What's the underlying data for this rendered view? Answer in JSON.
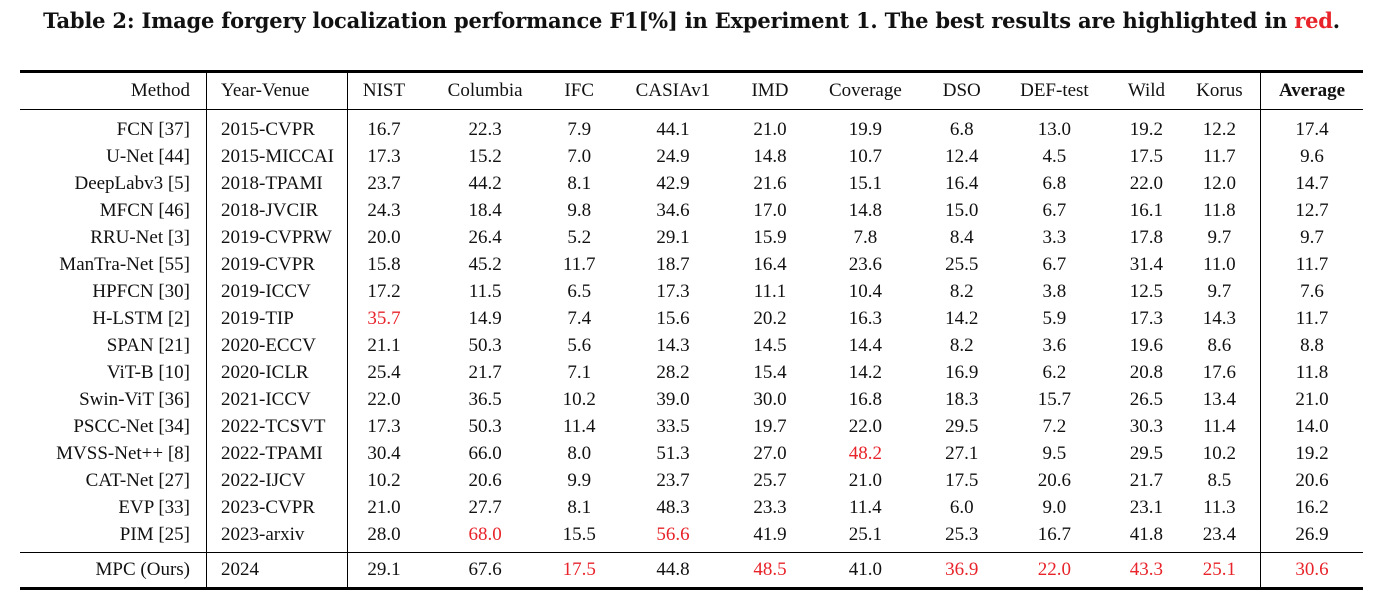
{
  "caption": {
    "prefix": "Table 2: Image forgery localization performance F1[%] in Experiment 1. The best results are highlighted in ",
    "highlight": "red",
    "suffix": "."
  },
  "colors": {
    "highlight": "#e8232a"
  },
  "headers": [
    "Method",
    "Year-Venue",
    "NIST",
    "Columbia",
    "IFC",
    "CASIAv1",
    "IMD",
    "Coverage",
    "DSO",
    "DEF-test",
    "Wild",
    "Korus",
    "Average"
  ],
  "rows": [
    {
      "method": "FCN [37]",
      "year": "2015-CVPR",
      "values": [
        "16.7",
        "22.3",
        "7.9",
        "44.1",
        "21.0",
        "19.9",
        "6.8",
        "13.0",
        "19.2",
        "12.2"
      ],
      "average": "17.4",
      "best": []
    },
    {
      "method": "U-Net [44]",
      "year": "2015-MICCAI",
      "values": [
        "17.3",
        "15.2",
        "7.0",
        "24.9",
        "14.8",
        "10.7",
        "12.4",
        "4.5",
        "17.5",
        "11.7"
      ],
      "average": "9.6",
      "best": []
    },
    {
      "method": "DeepLabv3 [5]",
      "year": "2018-TPAMI",
      "values": [
        "23.7",
        "44.2",
        "8.1",
        "42.9",
        "21.6",
        "15.1",
        "16.4",
        "6.8",
        "22.0",
        "12.0"
      ],
      "average": "14.7",
      "best": []
    },
    {
      "method": "MFCN [46]",
      "year": "2018-JVCIR",
      "values": [
        "24.3",
        "18.4",
        "9.8",
        "34.6",
        "17.0",
        "14.8",
        "15.0",
        "6.7",
        "16.1",
        "11.8"
      ],
      "average": "12.7",
      "best": []
    },
    {
      "method": "RRU-Net [3]",
      "year": "2019-CVPRW",
      "values": [
        "20.0",
        "26.4",
        "5.2",
        "29.1",
        "15.9",
        "7.8",
        "8.4",
        "3.3",
        "17.8",
        "9.7"
      ],
      "average": "9.7",
      "best": []
    },
    {
      "method": "ManTra-Net [55]",
      "year": "2019-CVPR",
      "values": [
        "15.8",
        "45.2",
        "11.7",
        "18.7",
        "16.4",
        "23.6",
        "25.5",
        "6.7",
        "31.4",
        "11.0"
      ],
      "average": "11.7",
      "best": []
    },
    {
      "method": "HPFCN [30]",
      "year": "2019-ICCV",
      "values": [
        "17.2",
        "11.5",
        "6.5",
        "17.3",
        "11.1",
        "10.4",
        "8.2",
        "3.8",
        "12.5",
        "9.7"
      ],
      "average": "7.6",
      "best": []
    },
    {
      "method": "H-LSTM [2]",
      "year": "2019-TIP",
      "values": [
        "35.7",
        "14.9",
        "7.4",
        "15.6",
        "20.2",
        "16.3",
        "14.2",
        "5.9",
        "17.3",
        "14.3"
      ],
      "average": "11.7",
      "best": [
        0
      ]
    },
    {
      "method": "SPAN [21]",
      "year": "2020-ECCV",
      "values": [
        "21.1",
        "50.3",
        "5.6",
        "14.3",
        "14.5",
        "14.4",
        "8.2",
        "3.6",
        "19.6",
        "8.6"
      ],
      "average": "8.8",
      "best": []
    },
    {
      "method": "ViT-B [10]",
      "year": "2020-ICLR",
      "values": [
        "25.4",
        "21.7",
        "7.1",
        "28.2",
        "15.4",
        "14.2",
        "16.9",
        "6.2",
        "20.8",
        "17.6"
      ],
      "average": "11.8",
      "best": []
    },
    {
      "method": "Swin-ViT [36]",
      "year": "2021-ICCV",
      "values": [
        "22.0",
        "36.5",
        "10.2",
        "39.0",
        "30.0",
        "16.8",
        "18.3",
        "15.7",
        "26.5",
        "13.4"
      ],
      "average": "21.0",
      "best": []
    },
    {
      "method": "PSCC-Net [34]",
      "year": "2022-TCSVT",
      "values": [
        "17.3",
        "50.3",
        "11.4",
        "33.5",
        "19.7",
        "22.0",
        "29.5",
        "7.2",
        "30.3",
        "11.4"
      ],
      "average": "14.0",
      "best": []
    },
    {
      "method": "MVSS-Net++ [8]",
      "year": "2022-TPAMI",
      "values": [
        "30.4",
        "66.0",
        "8.0",
        "51.3",
        "27.0",
        "48.2",
        "27.1",
        "9.5",
        "29.5",
        "10.2"
      ],
      "average": "19.2",
      "best": [
        5
      ]
    },
    {
      "method": "CAT-Net [27]",
      "year": "2022-IJCV",
      "values": [
        "10.2",
        "20.6",
        "9.9",
        "23.7",
        "25.7",
        "21.0",
        "17.5",
        "20.6",
        "21.7",
        "8.5"
      ],
      "average": "20.6",
      "best": []
    },
    {
      "method": "EVP [33]",
      "year": "2023-CVPR",
      "values": [
        "21.0",
        "27.7",
        "8.1",
        "48.3",
        "23.3",
        "11.4",
        "6.0",
        "9.0",
        "23.1",
        "11.3"
      ],
      "average": "16.2",
      "best": []
    },
    {
      "method": "PIM [25]",
      "year": "2023-arxiv",
      "values": [
        "28.0",
        "68.0",
        "15.5",
        "56.6",
        "41.9",
        "25.1",
        "25.3",
        "16.7",
        "41.8",
        "23.4"
      ],
      "average": "26.9",
      "best": [
        1,
        3
      ]
    }
  ],
  "ours": {
    "method": "MPC (Ours)",
    "year": "2024",
    "values": [
      "29.1",
      "67.6",
      "17.5",
      "44.8",
      "48.5",
      "41.0",
      "36.9",
      "22.0",
      "43.3",
      "25.1"
    ],
    "average": "30.6",
    "best": [
      2,
      4,
      6,
      7,
      8,
      9,
      10
    ]
  }
}
